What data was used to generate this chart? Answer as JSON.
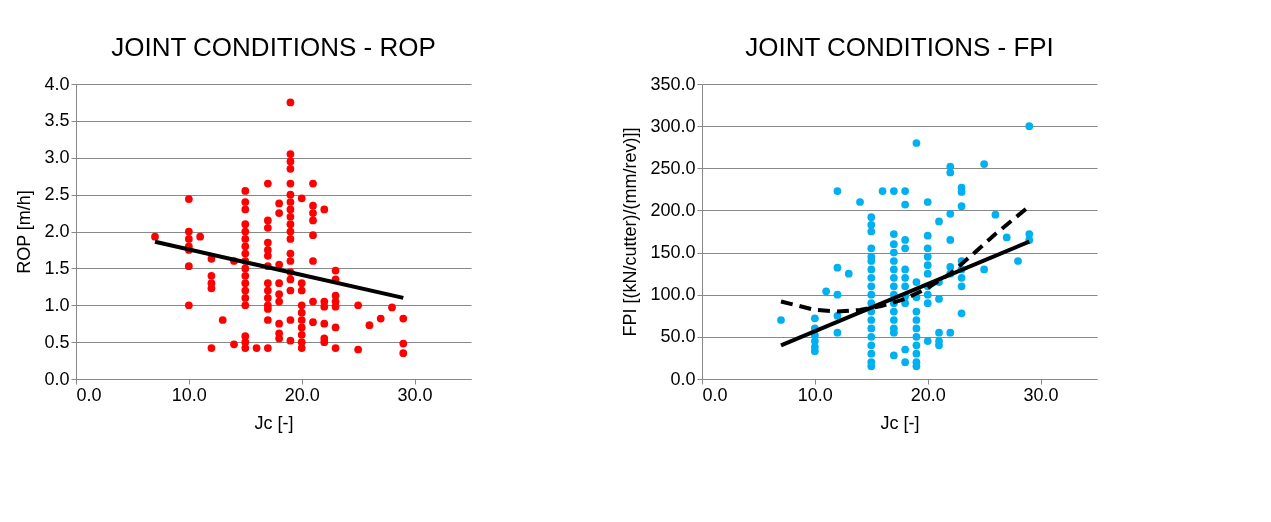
{
  "chart_data": [
    {
      "type": "scatter",
      "title": "JOINT CONDITIONS - ROP",
      "xlabel": "Jc [-]",
      "ylabel": "ROP [m/h]",
      "grid": "y",
      "xlim": [
        0,
        35
      ],
      "xticks": [
        {
          "value": 0,
          "label": "0.0"
        },
        {
          "value": 10,
          "label": "10.0"
        },
        {
          "value": 20,
          "label": "20.0"
        },
        {
          "value": 30,
          "label": "30.0"
        }
      ],
      "ylim": [
        0,
        4
      ],
      "yticks": [
        {
          "value": 0,
          "label": "0.0"
        },
        {
          "value": 0.5,
          "label": "0.5"
        },
        {
          "value": 1,
          "label": "1.0"
        },
        {
          "value": 1.5,
          "label": "1.5"
        },
        {
          "value": 2,
          "label": "2.0"
        },
        {
          "value": 2.5,
          "label": "2.5"
        },
        {
          "value": 3,
          "label": "3.0"
        },
        {
          "value": 3.5,
          "label": "3.5"
        },
        {
          "value": 4,
          "label": "4.0"
        }
      ],
      "series": [
        {
          "type": "scatter",
          "marker": "circle",
          "color": "#ff0000",
          "x": [
            7,
            10,
            10,
            10,
            10,
            10,
            10,
            10,
            11,
            12,
            12,
            12,
            12,
            12,
            13,
            14,
            14,
            15,
            15,
            15,
            15,
            15,
            15,
            15,
            15,
            15,
            15,
            15,
            15,
            15,
            15,
            15,
            15,
            15,
            15,
            16,
            17,
            17,
            17,
            17,
            17,
            17,
            17,
            17,
            17,
            17,
            17,
            17,
            17,
            17,
            18,
            18,
            18,
            18,
            18,
            18,
            18,
            18,
            18,
            19,
            19,
            19,
            19,
            19,
            19,
            19,
            19,
            19,
            19,
            19,
            19,
            19,
            19,
            19,
            19,
            19,
            19,
            19,
            20,
            20,
            20,
            20,
            20,
            20,
            20,
            20,
            20,
            20,
            21,
            21,
            21,
            21,
            21,
            21,
            21,
            21,
            22,
            22,
            22,
            22,
            22,
            22,
            23,
            23,
            23,
            23,
            23,
            23,
            23,
            25,
            25,
            26,
            27,
            28,
            29,
            29,
            29
          ],
          "values": [
            1.93,
            2.44,
            2.0,
            1.9,
            1.8,
            1.75,
            1.53,
            1.0,
            1.93,
            1.63,
            1.4,
            1.3,
            1.23,
            0.42,
            0.8,
            1.6,
            0.47,
            2.55,
            2.4,
            2.3,
            2.1,
            2.0,
            1.9,
            1.8,
            1.7,
            1.6,
            1.5,
            1.4,
            1.3,
            1.2,
            1.1,
            1.0,
            0.58,
            0.5,
            0.42,
            0.42,
            2.65,
            2.15,
            2.05,
            1.85,
            1.75,
            1.67,
            1.53,
            1.3,
            1.2,
            1.1,
            1.0,
            0.95,
            0.8,
            0.42,
            2.38,
            2.25,
            1.55,
            1.3,
            1.15,
            1.05,
            0.75,
            0.62,
            0.55,
            3.75,
            3.05,
            2.95,
            2.85,
            2.65,
            2.5,
            2.4,
            2.3,
            2.2,
            2.1,
            2.0,
            1.9,
            1.7,
            1.6,
            1.45,
            1.35,
            1.2,
            0.8,
            0.52,
            2.45,
            1.3,
            1.2,
            1.0,
            0.9,
            0.8,
            0.7,
            0.6,
            0.5,
            0.42,
            2.65,
            2.35,
            2.25,
            2.15,
            1.95,
            1.6,
            1.05,
            0.77,
            2.3,
            1.05,
            0.98,
            0.75,
            0.55,
            0.5,
            1.47,
            1.35,
            1.13,
            1.05,
            0.98,
            0.7,
            0.42,
            1.0,
            0.4,
            0.73,
            0.82,
            0.97,
            0.82,
            0.48,
            0.35
          ]
        },
        {
          "type": "line",
          "color": "#000000",
          "line_style": "solid",
          "x": [
            7,
            29
          ],
          "values": [
            1.86,
            1.1
          ]
        }
      ]
    },
    {
      "type": "scatter",
      "title": "JOINT CONDITIONS - FPI",
      "xlabel": "Jc [-]",
      "ylabel": "FPI [(kN/cutter)/(mm/rev)]]",
      "grid": "y",
      "xlim": [
        0,
        35
      ],
      "xticks": [
        {
          "value": 0,
          "label": "0.0"
        },
        {
          "value": 10,
          "label": "10.0"
        },
        {
          "value": 20,
          "label": "20.0"
        },
        {
          "value": 30,
          "label": "30.0"
        }
      ],
      "ylim": [
        0,
        350
      ],
      "yticks": [
        {
          "value": 0,
          "label": "0.0"
        },
        {
          "value": 50,
          "label": "50.0"
        },
        {
          "value": 100,
          "label": "100.0"
        },
        {
          "value": 150,
          "label": "150.0"
        },
        {
          "value": 200,
          "label": "200.0"
        },
        {
          "value": 250,
          "label": "250.0"
        },
        {
          "value": 300,
          "label": "300.0"
        },
        {
          "value": 350,
          "label": "350.0"
        }
      ],
      "series": [
        {
          "type": "scatter",
          "marker": "circle",
          "color": "#00b0f0",
          "x": [
            7,
            10,
            10,
            10,
            10,
            10,
            10,
            11,
            12,
            12,
            12,
            12,
            12,
            13,
            14,
            15,
            15,
            15,
            15,
            15,
            15,
            15,
            15,
            15,
            15,
            15,
            15,
            15,
            15,
            15,
            15,
            15,
            15,
            15,
            16,
            17,
            17,
            17,
            17,
            17,
            17,
            17,
            17,
            17,
            17,
            17,
            17,
            17,
            17,
            17,
            18,
            18,
            18,
            18,
            18,
            18,
            18,
            18,
            18,
            18,
            18,
            19,
            19,
            19,
            19,
            19,
            19,
            19,
            19,
            19,
            19,
            19,
            20,
            20,
            20,
            20,
            20,
            20,
            20,
            20,
            20,
            20,
            21,
            21,
            21,
            21,
            21,
            21,
            22,
            22,
            22,
            22,
            22,
            22,
            22,
            23,
            23,
            23,
            23,
            23,
            23,
            23,
            23,
            25,
            25,
            26,
            27,
            28,
            29,
            29,
            29
          ],
          "values": [
            70,
            72,
            60,
            52,
            45,
            38,
            33,
            104,
            223,
            132,
            100,
            75,
            55,
            125,
            210,
            192,
            183,
            175,
            155,
            145,
            140,
            130,
            120,
            110,
            100,
            90,
            80,
            70,
            60,
            50,
            40,
            30,
            20,
            15,
            223,
            223,
            172,
            160,
            150,
            140,
            130,
            120,
            110,
            100,
            90,
            80,
            70,
            60,
            55,
            28,
            223,
            207,
            165,
            155,
            130,
            120,
            110,
            98,
            90,
            35,
            20,
            280,
            115,
            97,
            80,
            70,
            60,
            50,
            40,
            30,
            20,
            15,
            210,
            170,
            155,
            145,
            135,
            125,
            110,
            100,
            90,
            45,
            187,
            115,
            95,
            55,
            45,
            40,
            252,
            245,
            196,
            165,
            133,
            125,
            55,
            227,
            222,
            205,
            140,
            130,
            120,
            110,
            78,
            255,
            130,
            195,
            168,
            140,
            300,
            172,
            165
          ]
        },
        {
          "type": "line",
          "color": "#000000",
          "line_style": "solid",
          "x": [
            7,
            29
          ],
          "values": [
            40,
            163
          ]
        },
        {
          "type": "line",
          "color": "#000000",
          "line_style": "dashed",
          "x": [
            7,
            10,
            12,
            14,
            16,
            18,
            20,
            22,
            24,
            26,
            29
          ],
          "values": [
            92,
            82,
            80,
            82,
            87,
            95,
            108,
            125,
            148,
            172,
            205
          ]
        }
      ]
    }
  ]
}
